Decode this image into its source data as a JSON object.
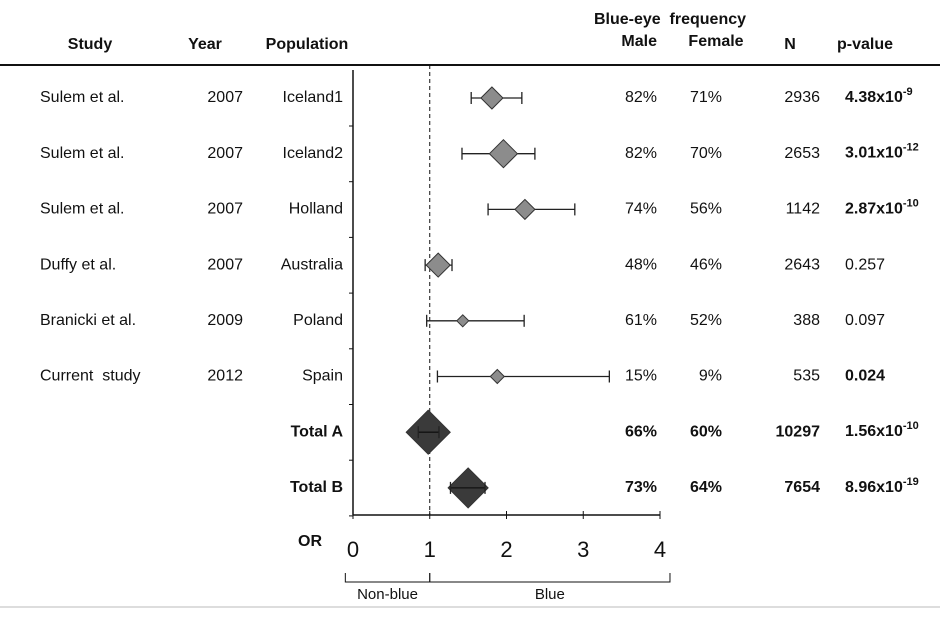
{
  "chart_data": {
    "type": "forest",
    "headers": {
      "study": "Study",
      "year": "Year",
      "population": "Population",
      "freq_top": "Blue-eye  frequency",
      "male": "Male",
      "female": "Female",
      "n": "N",
      "p": "p-value"
    },
    "rows": [
      {
        "study": "Sulem et al.",
        "year": "2007",
        "population": "Iceland1",
        "or": 1.81,
        "ci": [
          1.54,
          2.2
        ],
        "size": 11,
        "male": "82%",
        "female": "71%",
        "n": "2936",
        "p": {
          "base": "4.38x10",
          "exp": "-9"
        },
        "p_bold": true
      },
      {
        "study": "Sulem et al.",
        "year": "2007",
        "population": "Iceland2",
        "or": 1.96,
        "ci": [
          1.42,
          2.37
        ],
        "size": 14,
        "male": "82%",
        "female": "70%",
        "n": "2653",
        "p": {
          "base": "3.01x10",
          "exp": "-12"
        },
        "p_bold": true
      },
      {
        "study": "Sulem et al.",
        "year": "2007",
        "population": "Holland",
        "or": 2.24,
        "ci": [
          1.76,
          2.89
        ],
        "size": 10,
        "male": "74%",
        "female": "56%",
        "n": "1142",
        "p": {
          "base": "2.87x10",
          "exp": "-10"
        },
        "p_bold": true
      },
      {
        "study": "Duffy et al.",
        "year": "2007",
        "population": "Australia",
        "or": 1.11,
        "ci": [
          0.94,
          1.29
        ],
        "size": 12,
        "male": "48%",
        "female": "46%",
        "n": "2643",
        "p": "0.257",
        "p_bold": false
      },
      {
        "study": "Branicki et al.",
        "year": "2009",
        "population": "Poland",
        "or": 1.43,
        "ci": [
          0.96,
          2.23
        ],
        "size": 6,
        "male": "61%",
        "female": "52%",
        "n": "388",
        "p": "0.097",
        "p_bold": false
      },
      {
        "study": "Current  study",
        "year": "2012",
        "population": "Spain",
        "or": 1.88,
        "ci": [
          1.1,
          3.34
        ],
        "size": 7,
        "male": "15%",
        "female": "9%",
        "n": "535",
        "p": "0.024",
        "p_bold": true
      },
      {
        "population": "Total A",
        "or": 0.98,
        "ci": [
          0.85,
          1.12
        ],
        "size": 22,
        "total": true,
        "male": "66%",
        "female": "60%",
        "n": "10297",
        "p": {
          "base": "1.56x10",
          "exp": "-10"
        },
        "p_bold": true
      },
      {
        "population": "Total B",
        "or": 1.5,
        "ci": [
          1.27,
          1.72
        ],
        "size": 20,
        "total": true,
        "male": "73%",
        "female": "64%",
        "n": "7654",
        "p": {
          "base": "8.96x10",
          "exp": "-19"
        },
        "p_bold": true
      }
    ],
    "x_label": "OR",
    "xlim": [
      0,
      4
    ],
    "xticks": [
      0,
      1,
      2,
      3,
      4
    ],
    "reference_line": 1,
    "marker_color": "#8c8c8c",
    "total_color": "#3a3a3a",
    "brackets": [
      {
        "label": "Non-blue",
        "from": -0.1,
        "to": 1
      },
      {
        "label": "Blue",
        "from": 1,
        "to": 4.13
      }
    ]
  }
}
